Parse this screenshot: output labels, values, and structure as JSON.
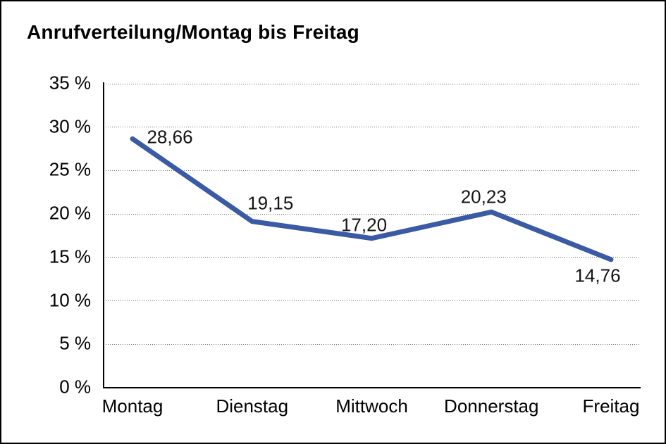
{
  "frame": {
    "background_color": "#ffffff",
    "border_color": "#000000"
  },
  "chart_data": {
    "type": "line",
    "title": "Anrufverteilung/Montag bis Freitag",
    "categories": [
      "Montag",
      "Dienstag",
      "Mittwoch",
      "Donnerstag",
      "Freitag"
    ],
    "values": [
      28.66,
      19.15,
      17.2,
      20.23,
      14.76
    ],
    "value_labels": [
      "28,66",
      "19,15",
      "17,20",
      "20,23",
      "14,76"
    ],
    "xlabel": "",
    "ylabel": "",
    "ylim": [
      0,
      35
    ],
    "ytick_interval": 5,
    "ytick_labels_top_to_bottom": [
      "35 %",
      "30 %",
      "25 %",
      "20 %",
      "15 %",
      "10 %",
      "5 %",
      "0 %"
    ],
    "grid": "horizontal-dotted",
    "legend_position": "none",
    "line_color": "#3A5AA6",
    "gridline_color": "#6e6e6e",
    "axis_color": "#000000",
    "text_color": "#000000"
  }
}
